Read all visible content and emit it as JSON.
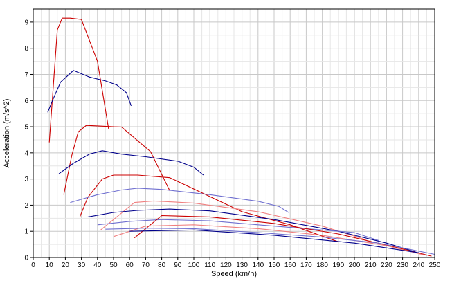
{
  "chart_data": {
    "type": "line",
    "xlabel": "Speed (km/h)",
    "ylabel": "Acceleration (m/s^2)",
    "xlim": [
      0,
      250
    ],
    "ylim": [
      0,
      9.5
    ],
    "xticks": [
      "0",
      "10",
      "20",
      "30",
      "40",
      "50",
      "60",
      "70",
      "80",
      "90",
      "100",
      "110",
      "120",
      "130",
      "140",
      "150",
      "160",
      "170",
      "180",
      "190",
      "200",
      "210",
      "220",
      "230",
      "240",
      "250"
    ],
    "yticks": [
      "0",
      "1",
      "2",
      "3",
      "4",
      "5",
      "6",
      "7",
      "8",
      "9"
    ],
    "grid": true,
    "legend": "none",
    "series": [
      {
        "color": "#cc0000",
        "points": [
          [
            10,
            4.4
          ],
          [
            15,
            8.7
          ],
          [
            18,
            9.15
          ],
          [
            23,
            9.15
          ],
          [
            30,
            9.1
          ],
          [
            40,
            7.5
          ],
          [
            47,
            4.9
          ]
        ]
      },
      {
        "color": "#00008b",
        "points": [
          [
            9,
            5.55
          ],
          [
            12,
            6.0
          ],
          [
            17,
            6.7
          ],
          [
            25,
            7.15
          ],
          [
            35,
            6.9
          ],
          [
            45,
            6.75
          ],
          [
            52,
            6.6
          ],
          [
            58,
            6.3
          ],
          [
            61,
            5.8
          ]
        ]
      },
      {
        "color": "#cc0000",
        "points": [
          [
            19,
            2.4
          ],
          [
            24,
            3.9
          ],
          [
            28,
            4.8
          ],
          [
            33,
            5.05
          ],
          [
            40,
            5.03
          ],
          [
            50,
            5.0
          ],
          [
            55,
            4.99
          ],
          [
            73,
            4.05
          ],
          [
            85,
            2.55
          ]
        ]
      },
      {
        "color": "#00008b",
        "points": [
          [
            16,
            3.2
          ],
          [
            25,
            3.6
          ],
          [
            35,
            3.95
          ],
          [
            43,
            4.08
          ],
          [
            55,
            3.95
          ],
          [
            70,
            3.85
          ],
          [
            90,
            3.68
          ],
          [
            100,
            3.45
          ],
          [
            106,
            3.15
          ]
        ]
      },
      {
        "color": "#cc0000",
        "points": [
          [
            29,
            1.55
          ],
          [
            34,
            2.3
          ],
          [
            43,
            3.0
          ],
          [
            50,
            3.15
          ],
          [
            65,
            3.15
          ],
          [
            85,
            3.05
          ],
          [
            130,
            1.75
          ],
          [
            160,
            1.25
          ],
          [
            190,
            0.6
          ]
        ]
      },
      {
        "color": "#7070d0",
        "points": [
          [
            23,
            2.1
          ],
          [
            40,
            2.4
          ],
          [
            55,
            2.58
          ],
          [
            65,
            2.65
          ],
          [
            80,
            2.6
          ],
          [
            110,
            2.4
          ],
          [
            140,
            2.15
          ],
          [
            153,
            1.95
          ],
          [
            159,
            1.72
          ]
        ]
      },
      {
        "color": "#f08080",
        "points": [
          [
            42,
            1.05
          ],
          [
            55,
            1.7
          ],
          [
            63,
            2.1
          ],
          [
            75,
            2.16
          ],
          [
            100,
            2.08
          ],
          [
            140,
            1.75
          ],
          [
            180,
            1.2
          ],
          [
            205,
            0.72
          ],
          [
            212,
            0.52
          ]
        ]
      },
      {
        "color": "#00008b",
        "points": [
          [
            34,
            1.55
          ],
          [
            50,
            1.72
          ],
          [
            65,
            1.8
          ],
          [
            85,
            1.85
          ],
          [
            110,
            1.78
          ],
          [
            150,
            1.45
          ],
          [
            190,
            1.0
          ],
          [
            220,
            0.55
          ],
          [
            245,
            0.08
          ]
        ]
      },
      {
        "color": "#7070d0",
        "points": [
          [
            40,
            1.25
          ],
          [
            60,
            1.38
          ],
          [
            80,
            1.45
          ],
          [
            110,
            1.4
          ],
          [
            150,
            1.2
          ],
          [
            180,
            1.05
          ],
          [
            200,
            0.95
          ],
          [
            215,
            0.65
          ]
        ]
      },
      {
        "color": "#cc0000",
        "points": [
          [
            63,
            0.75
          ],
          [
            80,
            1.6
          ],
          [
            110,
            1.55
          ],
          [
            150,
            1.3
          ],
          [
            190,
            0.9
          ],
          [
            225,
            0.4
          ],
          [
            248,
            0.05
          ]
        ]
      },
      {
        "color": "#f08080",
        "points": [
          [
            50,
            0.8
          ],
          [
            70,
            1.2
          ],
          [
            100,
            1.25
          ],
          [
            140,
            1.1
          ],
          [
            180,
            0.85
          ],
          [
            220,
            0.45
          ],
          [
            243,
            0.1
          ]
        ]
      },
      {
        "color": "#7070d0",
        "points": [
          [
            45,
            1.08
          ],
          [
            70,
            1.12
          ],
          [
            100,
            1.1
          ],
          [
            140,
            0.95
          ],
          [
            180,
            0.78
          ],
          [
            215,
            0.55
          ],
          [
            250,
            0.12
          ]
        ]
      },
      {
        "color": "#00008b",
        "points": [
          [
            60,
            1.0
          ],
          [
            100,
            1.05
          ],
          [
            150,
            0.85
          ],
          [
            200,
            0.55
          ],
          [
            240,
            0.18
          ]
        ]
      }
    ]
  }
}
